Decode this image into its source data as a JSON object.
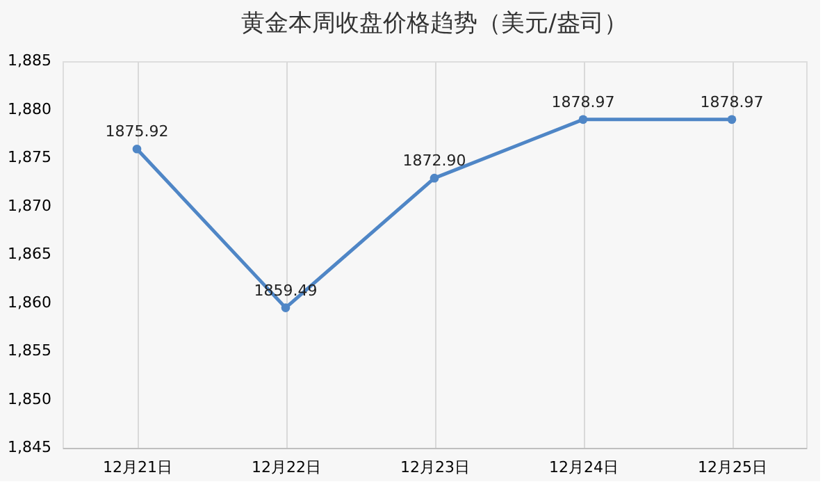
{
  "chart_data": {
    "type": "line",
    "title": "黄金本周收盘价格趋势（美元/盎司）",
    "categories": [
      "12月21日",
      "12月22日",
      "12月23日",
      "12月24日",
      "12月25日"
    ],
    "series": [
      {
        "color": "#4f86c6",
        "values": [
          1875.92,
          1859.49,
          1872.9,
          1878.97,
          1878.97
        ],
        "value_labels": [
          "1875.92",
          "1859.49",
          "1872.90",
          "1878.97",
          "1878.97"
        ]
      }
    ],
    "ylim": [
      1845,
      1885
    ],
    "yticks": [
      {
        "value": 1845,
        "label": "1,845"
      },
      {
        "value": 1850,
        "label": "1,850"
      },
      {
        "value": 1855,
        "label": "1,855"
      },
      {
        "value": 1860,
        "label": "1,860"
      },
      {
        "value": 1865,
        "label": "1,865"
      },
      {
        "value": 1870,
        "label": "1,870"
      },
      {
        "value": 1875,
        "label": "1,875"
      },
      {
        "value": 1880,
        "label": "1,880"
      },
      {
        "value": 1885,
        "label": "1,885"
      }
    ],
    "grid": "x",
    "marker": "circle",
    "legend": false
  }
}
